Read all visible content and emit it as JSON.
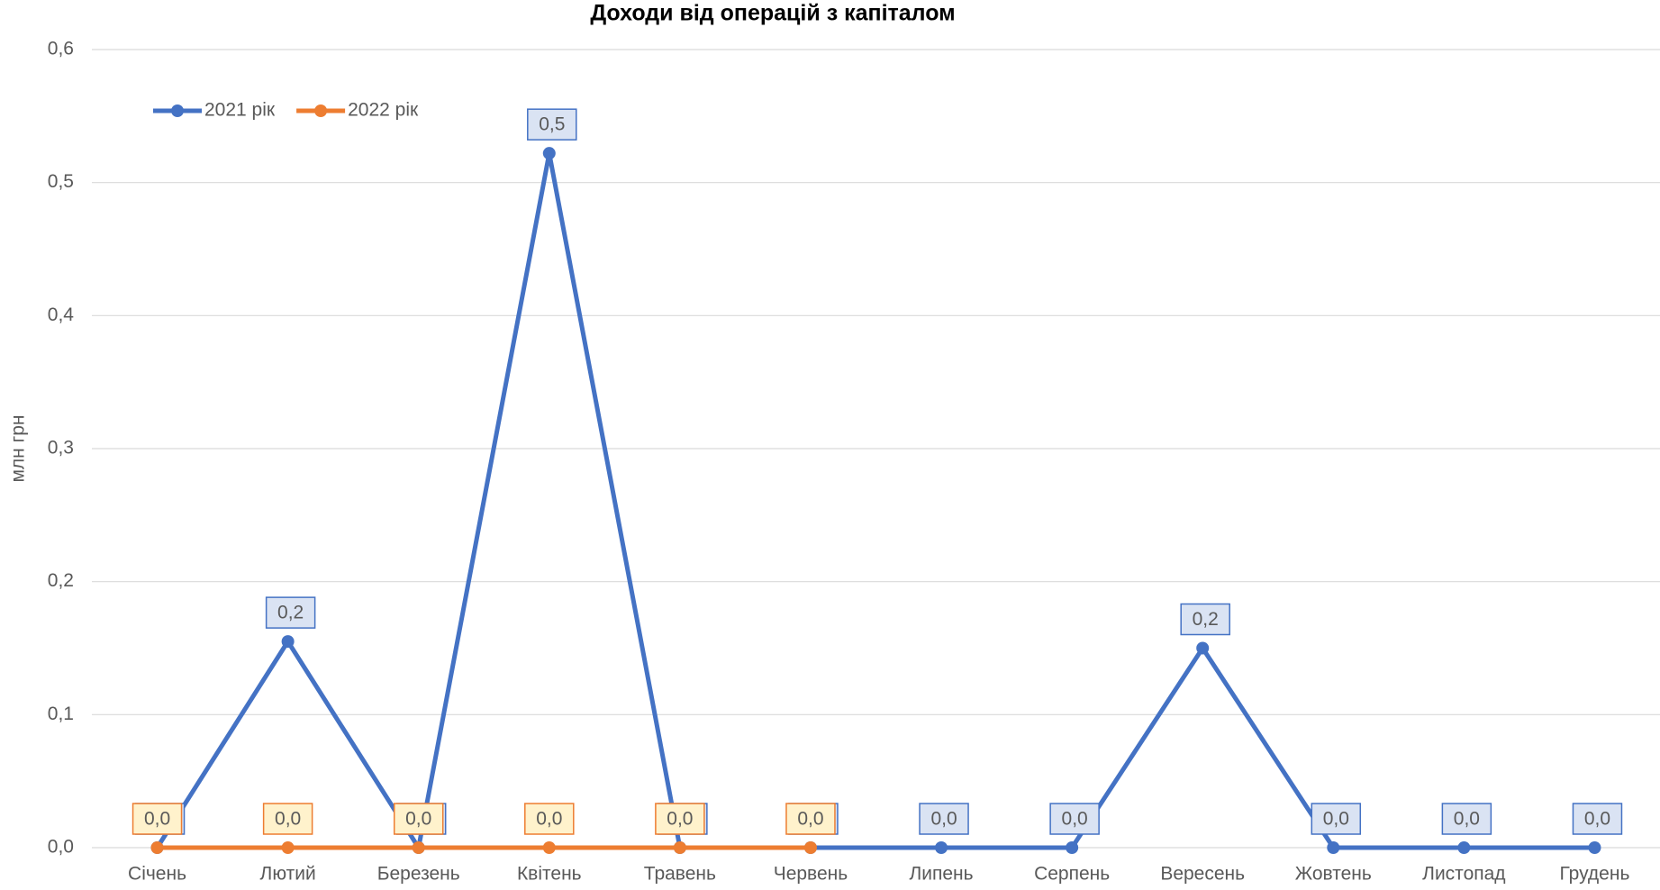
{
  "chart_data": {
    "type": "line",
    "title": "Доходи від операцій з капіталом",
    "y_label": "млн грн",
    "categories": [
      "Січень",
      "Лютий",
      "Березень",
      "Квітень",
      "Травень",
      "Червень",
      "Липень",
      "Серпень",
      "Вересень",
      "Жовтень",
      "Листопад",
      "Грудень"
    ],
    "series": [
      {
        "name": "2021 рік",
        "color": "#4472c4",
        "label_fill": "#dae3f3",
        "values": [
          0,
          0.155,
          0,
          0.522,
          0,
          0,
          0,
          0,
          0.15,
          0,
          0,
          0
        ],
        "value_labels": [
          "0,0",
          "0,2",
          "0,0",
          "0,5",
          "0,0",
          "0,0",
          "0,0",
          "0,0",
          "0,2",
          "0,0",
          "0,0",
          "0,0"
        ]
      },
      {
        "name": "2022 рік",
        "color": "#ed7d31",
        "label_fill": "#fff2cc",
        "values": [
          0,
          0,
          0,
          0,
          0,
          0,
          null,
          null,
          null,
          null,
          null,
          null
        ],
        "value_labels": [
          "0,0",
          "0,0",
          "0,0",
          "0,0",
          "0,0",
          "0,0",
          null,
          null,
          null,
          null,
          null,
          null
        ]
      }
    ],
    "ylim": [
      0,
      0.6
    ],
    "yticks": [
      {
        "value": 0,
        "label": "0,0"
      },
      {
        "value": 0.1,
        "label": "0,1"
      },
      {
        "value": 0.2,
        "label": "0,2"
      },
      {
        "value": 0.3,
        "label": "0,3"
      },
      {
        "value": 0.4,
        "label": "0,4"
      },
      {
        "value": 0.5,
        "label": "0,5"
      },
      {
        "value": 0.6,
        "label": "0,6"
      }
    ],
    "grid": true,
    "legend": "top-left"
  }
}
